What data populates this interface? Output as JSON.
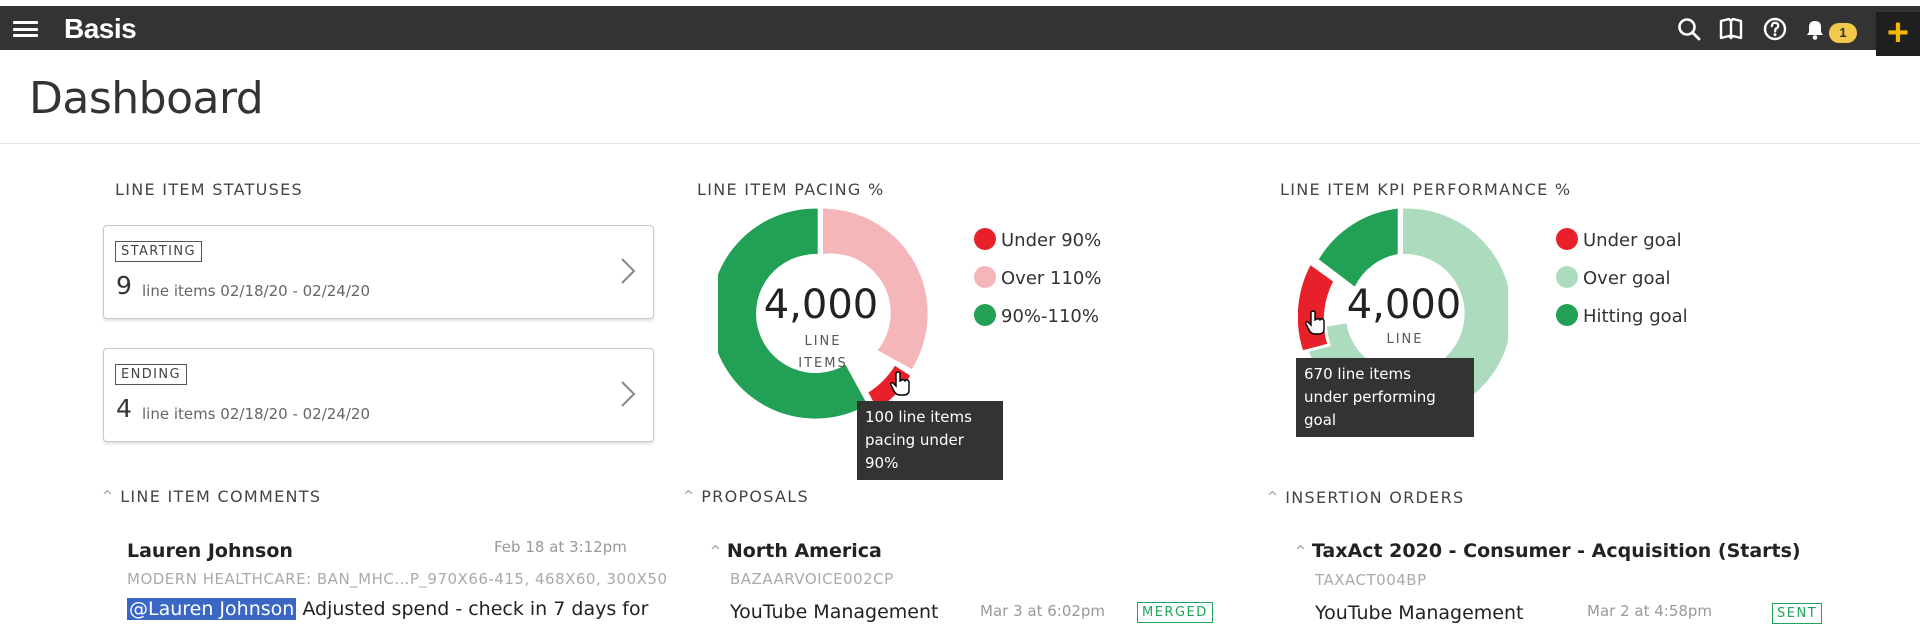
{
  "app": {
    "brand": "Basis",
    "notification_count": "1"
  },
  "page": {
    "title": "Dashboard"
  },
  "statuses": {
    "heading": "LINE ITEM STATUSES",
    "cards": [
      {
        "tag": "STARTING",
        "count": "9",
        "desc": "line items 02/18/20 - 02/24/20"
      },
      {
        "tag": "ENDING",
        "count": "4",
        "desc": "line items 02/18/20 - 02/24/20"
      }
    ]
  },
  "pacing": {
    "heading": "LINE ITEM PACING %",
    "total": "4,000",
    "total_label_1": "LINE",
    "total_label_2": "ITEMS",
    "legend": [
      {
        "label": "Under 90%",
        "color": "#e8202a"
      },
      {
        "label": "Over 110%",
        "color": "#f4b6b8"
      },
      {
        "label": "90%-110%",
        "color": "#22a055"
      }
    ],
    "tooltip_line1": "100 line items",
    "tooltip_line2": "pacing under 90%"
  },
  "kpi": {
    "heading": "LINE ITEM KPI PERFORMANCE %",
    "total": "4,000",
    "total_label_1": "LINE",
    "legend": [
      {
        "label": "Under goal",
        "color": "#e8202a"
      },
      {
        "label": "Over goal",
        "color": "#acdcbd"
      },
      {
        "label": "Hitting goal",
        "color": "#22a055"
      }
    ],
    "tooltip_line1": "670 line items",
    "tooltip_line2": "under performing goal"
  },
  "comments": {
    "heading": "LINE ITEM COMMENTS",
    "item": {
      "author": "Lauren Johnson",
      "time": "Feb 18 at 3:12pm",
      "context": "MODERN HEALTHCARE: BAN_MHC…P_970X66-415, 468X60, 300X50",
      "mention": "@Lauren Johnson",
      "text": " Adjusted spend - check in 7 days for"
    }
  },
  "proposals": {
    "heading": "PROPOSALS",
    "group": "North America",
    "code": "BAZAARVOICE002CP",
    "item": {
      "name": "YouTube Management",
      "time": "Mar 3 at 6:02pm",
      "status": "MERGED"
    }
  },
  "insertion_orders": {
    "heading": "INSERTION ORDERS",
    "group": "TaxAct 2020 - Consumer - Acquisition (Starts)",
    "code": "TAXACT004BP",
    "item": {
      "name": "YouTube Management",
      "time": "Mar 2 at 4:58pm",
      "status": "SENT"
    }
  }
}
